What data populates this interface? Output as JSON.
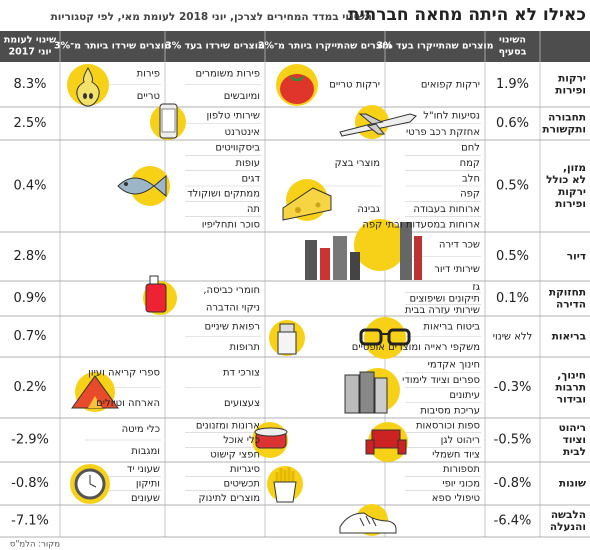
{
  "header": {
    "title": "כאילו לא היתה מחאה חברתית",
    "subtitle": "השינוי במדד המחירים לצרכן, יוני 2018 לעומת מאי, לפי קטגוריות"
  },
  "columns": [
    [
      "השינוי",
      "בסעיף"
    ],
    [
      "מוצרים שהתייקרו בעד 3%"
    ],
    [
      "מוצרים שהתייקרו ביותר מ־3%"
    ],
    [
      "מוצרים שירדו בעד 3%"
    ],
    [
      "מוצרים שירדו ביותר מ־3%"
    ],
    [
      "שינוי לעומת",
      "יוני 2017"
    ]
  ],
  "rows": [
    {
      "category": [
        "ירקות",
        "ופירות"
      ],
      "change": "1.9%",
      "up_small": [
        "ירקות קפואים"
      ],
      "up_large": [
        "ירקות טריים"
      ],
      "down_small": [
        "פירות משומרים",
        "ומיובשים"
      ],
      "down_large": [
        "פירות",
        "טריים"
      ],
      "yearly": "8.3%"
    },
    {
      "category": [
        "תחבורה",
        "ותקשורת"
      ],
      "change": "0.6%",
      "up_small": [
        "נסיעות לחו\"ל",
        "אחזקת רכב פרטי"
      ],
      "down_small": [
        "שירותי טלפון",
        "אינטרנט"
      ],
      "yearly": "2.5%"
    },
    {
      "category": [
        "מזון,",
        "לא כולל",
        "ירקות",
        "ופירות"
      ],
      "change": "0.5%",
      "up_small": [
        "לחם",
        "קמח",
        "חלב",
        "קפה",
        "ארוחות בעבודה",
        "ארוחות במסעדות ובתי קפה"
      ],
      "up_large": [
        "מוצרי בצק",
        "גבינה"
      ],
      "down_small": [
        "ביסקוויטים",
        "עופות",
        "דגים",
        "ממתקים ושוקולד",
        "תה",
        "סוכר ותחליפיו"
      ],
      "yearly": "0.4%"
    },
    {
      "category": [
        "דיור"
      ],
      "change": "0.5%",
      "up_small": [
        "שכר דירה",
        "שירותי דיור"
      ],
      "yearly": "2.8%"
    },
    {
      "category": [
        "תחזוקת",
        "הדירה"
      ],
      "change": "0.1%",
      "up_small": [
        "גז",
        "תיקונים ושיפוצים",
        "שירותי עזרה בבית"
      ],
      "down_small": [
        "חומרי כביסה,",
        "ניקוי והדברה"
      ],
      "yearly": "0.9%"
    },
    {
      "category": [
        "בריאות"
      ],
      "change": "ללא שינוי",
      "up_small": [
        "ביטוח בריאות",
        "משקפי ראייה ומוצרים אופטיים"
      ],
      "down_small": [
        "רפואת שיניים",
        "תרופות"
      ],
      "yearly": "0.7%"
    },
    {
      "category": [
        "חינוך,",
        "תרבות",
        "ובידור"
      ],
      "change": "-0.3%",
      "up_small": [
        "חינוך אקדמי",
        "ספרים וציוד לימודי",
        "עיתונים",
        "עריכת מסיבות"
      ],
      "down_small": [
        "צורכי דת",
        "צעצועים"
      ],
      "down_large": [
        "ספרי קריאה ועיון",
        "הארחה וטיולים"
      ],
      "yearly": "0.2%"
    },
    {
      "category": [
        "ריהוט",
        "וציוד",
        "לבית"
      ],
      "change": "-0.5%",
      "up_small": [
        "ספות וכורסאות",
        "ריהוט לגן",
        "ציוד חשמלי"
      ],
      "down_small": [
        "ארונות ומזנונים",
        "כלי אוכל",
        "חפצי קישוט"
      ],
      "down_large": [
        "כלי מיטה",
        "ומגבות"
      ],
      "yearly": "-2.9%"
    },
    {
      "category": [
        "שונות"
      ],
      "change": "-0.8%",
      "up_small": [
        "תספורות",
        "מכוני יופי",
        "טיפולי ספא"
      ],
      "down_small": [
        "סיגריות",
        "תכשיטים",
        "מוצרים לתינוק"
      ],
      "down_large": [
        "שעוני יד",
        "ותיקון",
        "שעונים"
      ],
      "yearly": "-0.8%"
    },
    {
      "category": [
        "הלבשה",
        "והנעלה"
      ],
      "change": "-6.4%",
      "yearly": "-7.1%"
    }
  ],
  "source": "מקור: הלמ\"ס"
}
